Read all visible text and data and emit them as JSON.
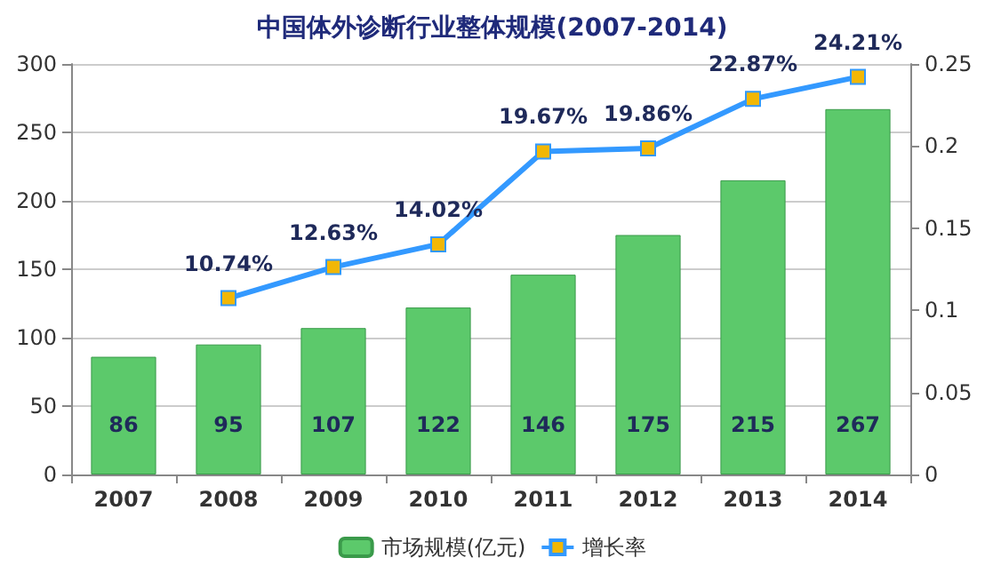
{
  "chart_data": {
    "type": "bar",
    "title": "中国体外诊断行业整体规模(2007-2014)",
    "categories": [
      "2007",
      "2008",
      "2009",
      "2010",
      "2011",
      "2012",
      "2013",
      "2014"
    ],
    "series": [
      {
        "name": "市场规模(亿元)",
        "color": "#5cc96b",
        "values": [
          86,
          95,
          107,
          122,
          146,
          175,
          215,
          267
        ],
        "value_labels": [
          "86",
          "95",
          "107",
          "122",
          "146",
          "175",
          "215",
          "267"
        ]
      },
      {
        "name": "增长率",
        "type": "line",
        "axis": "y2",
        "color": "#3399ff",
        "marker": "square",
        "values": [
          null,
          0.1074,
          0.1263,
          0.1402,
          0.1967,
          0.1986,
          0.2287,
          0.2421
        ],
        "value_labels": [
          null,
          "10.74%",
          "12.63%",
          "14.02%",
          "19.67%",
          "19.86%",
          "22.87%",
          "24.21%"
        ]
      }
    ],
    "ylim": [
      0,
      300
    ],
    "yticks": [
      0,
      50,
      100,
      150,
      200,
      250,
      300
    ],
    "y2lim": [
      0,
      0.25
    ],
    "y2ticks": [
      0,
      0.05,
      0.1,
      0.15,
      0.2,
      0.25
    ],
    "grid": "y",
    "legend": "bottom"
  }
}
